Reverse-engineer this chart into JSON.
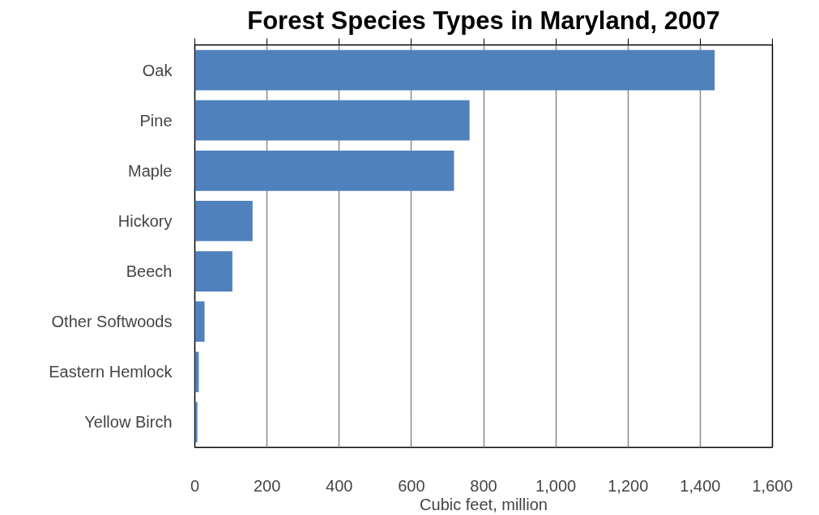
{
  "chart_data": {
    "type": "bar",
    "orientation": "horizontal",
    "title": "Forest Species Types in Maryland, 2007",
    "xlabel": "Cubic feet, million",
    "categories": [
      "Oak",
      "Pine",
      "Maple",
      "Hickory",
      "Beech",
      "Other Softwoods",
      "Eastern Hemlock",
      "Yellow Birch"
    ],
    "values": [
      1440,
      761,
      718,
      160,
      104,
      27,
      11,
      7
    ],
    "color": "#4f81bd",
    "xlim": [
      0,
      1600
    ],
    "xticks": [
      0,
      200,
      400,
      600,
      800,
      {
        "value": 1000,
        "label": "1,000"
      },
      {
        "value": 1200,
        "label": "1,200"
      },
      {
        "value": 1400,
        "label": "1,400"
      },
      {
        "value": 1600,
        "label": "1,600"
      }
    ],
    "grid": "x"
  }
}
